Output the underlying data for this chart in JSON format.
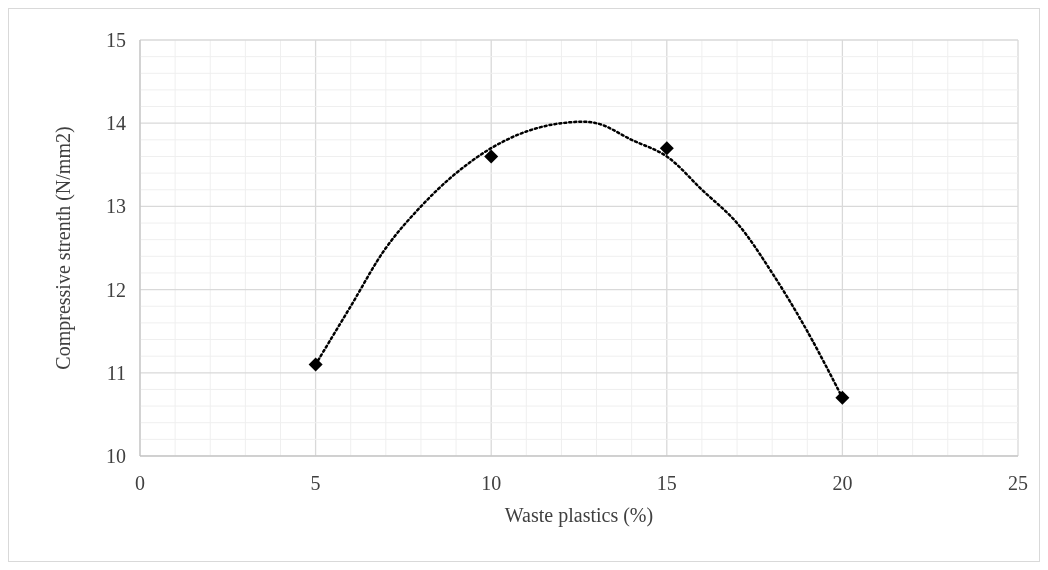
{
  "chart_data": {
    "type": "scatter",
    "xlabel": "Waste plastics (%)",
    "ylabel": "Compressive strenth (N/mm2)",
    "xlim": [
      0,
      25
    ],
    "ylim": [
      10,
      15
    ],
    "xticks": [
      0,
      {
        "value": 1,
        "label": null
      },
      {
        "value": 2,
        "label": null
      },
      {
        "value": 3,
        "label": null
      },
      {
        "value": 4,
        "label": null
      },
      5,
      {
        "value": 6,
        "label": null
      },
      {
        "value": 7,
        "label": null
      },
      {
        "value": 8,
        "label": null
      },
      {
        "value": 9,
        "label": null
      },
      10,
      {
        "value": 11,
        "label": null
      },
      {
        "value": 12,
        "label": null
      },
      {
        "value": 13,
        "label": null
      },
      {
        "value": 14,
        "label": null
      },
      15,
      {
        "value": 16,
        "label": null
      },
      {
        "value": 17,
        "label": null
      },
      {
        "value": 18,
        "label": null
      },
      {
        "value": 19,
        "label": null
      },
      20,
      {
        "value": 21,
        "label": null
      },
      {
        "value": 22,
        "label": null
      },
      {
        "value": 23,
        "label": null
      },
      {
        "value": 24,
        "label": null
      },
      25
    ],
    "yticks": [
      10,
      {
        "value": 10.2,
        "label": null
      },
      {
        "value": 10.4,
        "label": null
      },
      {
        "value": 10.6,
        "label": null
      },
      {
        "value": 10.8,
        "label": null
      },
      11,
      {
        "value": 11.2,
        "label": null
      },
      {
        "value": 11.4,
        "label": null
      },
      {
        "value": 11.6,
        "label": null
      },
      {
        "value": 11.8,
        "label": null
      },
      12,
      {
        "value": 12.2,
        "label": null
      },
      {
        "value": 12.4,
        "label": null
      },
      {
        "value": 12.6,
        "label": null
      },
      {
        "value": 12.8,
        "label": null
      },
      13,
      {
        "value": 13.2,
        "label": null
      },
      {
        "value": 13.4,
        "label": null
      },
      {
        "value": 13.6,
        "label": null
      },
      {
        "value": 13.8,
        "label": null
      },
      14,
      {
        "value": 14.2,
        "label": null
      },
      {
        "value": 14.4,
        "label": null
      },
      {
        "value": 14.6,
        "label": null
      },
      {
        "value": 14.8,
        "label": null
      },
      15
    ],
    "grid": true,
    "series": [
      {
        "color": "#000000",
        "marker": "diamond",
        "x": [
          5,
          10,
          15,
          20
        ],
        "values": [
          11.1,
          13.6,
          13.7,
          10.7
        ]
      },
      {
        "type": "line",
        "color": "#000000",
        "marker": "none",
        "line_style": "dotted",
        "x": [
          5,
          6,
          7,
          8,
          9,
          10,
          11,
          12,
          13,
          14,
          15,
          16,
          17,
          18,
          19,
          20
        ],
        "values": [
          11.1,
          11.8,
          12.5,
          13.0,
          13.4,
          13.7,
          13.9,
          14.0,
          14.0,
          13.8,
          13.6,
          13.2,
          12.8,
          12.2,
          11.5,
          10.7
        ]
      }
    ]
  }
}
